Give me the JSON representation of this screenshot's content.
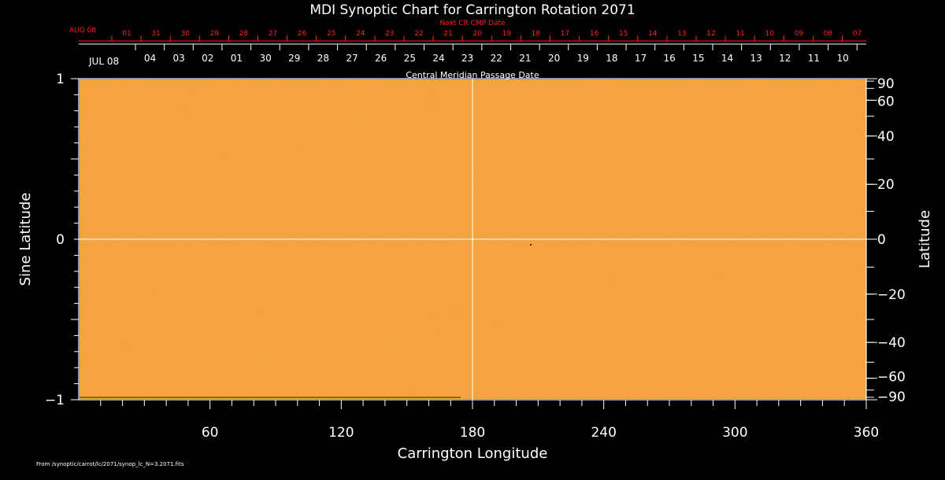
{
  "chart_data": {
    "type": "heatmap",
    "title": "MDI Synoptic Chart for Carrington Rotation 2071",
    "xlabel": "Carrington Longitude",
    "ylabel_left": "Sine Latitude",
    "ylabel_right": "Latitude",
    "xlim": [
      0,
      360
    ],
    "ylim_sine": [
      -1,
      1
    ],
    "x_ticks": [
      60,
      120,
      180,
      240,
      300,
      360
    ],
    "y_ticks_sine": [
      -1,
      0,
      1
    ],
    "y_ticks_latitude": [
      "90",
      "60",
      "40",
      "20",
      "0",
      "−20",
      "−40",
      "−60",
      "−90"
    ],
    "y_ticks_latitude_values": [
      90,
      60,
      40,
      20,
      0,
      -20,
      -40,
      -60,
      -90
    ],
    "cmp_label": "Central Meridian Passage Date",
    "cmp_month": "JUL 08",
    "cmp_dates": [
      "04",
      "03",
      "02",
      "01",
      "30",
      "29",
      "28",
      "27",
      "26",
      "25",
      "24",
      "23",
      "22",
      "21",
      "20",
      "19",
      "18",
      "17",
      "16",
      "15",
      "14",
      "13",
      "12",
      "11",
      "10"
    ],
    "next_cmp_label": "Next CR CMP Date",
    "next_cmp_month": "AUG 08",
    "next_cmp_dates": [
      "01",
      "31",
      "30",
      "29",
      "28",
      "27",
      "26",
      "25",
      "24",
      "23",
      "22",
      "21",
      "20",
      "19",
      "18",
      "17",
      "16",
      "15",
      "14",
      "13",
      "12",
      "11",
      "10",
      "09",
      "08",
      "07"
    ],
    "reference_lines": {
      "longitude": 180,
      "latitude": 0
    },
    "field_color": "#f5a13f",
    "field_noise_color": "#e0801a",
    "next_cmp_color": "#ff2020",
    "grid": false,
    "footer": "From /synoptic/carrot/lc/2071/synop_lc_N=3.2071.fits"
  }
}
